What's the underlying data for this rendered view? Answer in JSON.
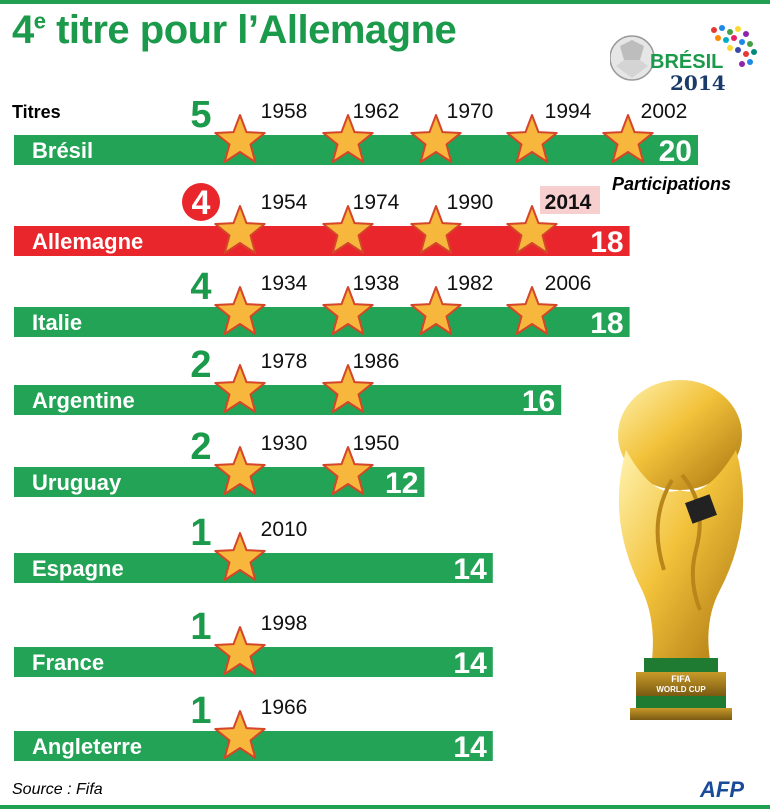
{
  "title": "4e titre pour l’Allemagne",
  "title_parts": {
    "number": "4",
    "sup": "e",
    "rest": " titre pour l’Allemagne"
  },
  "logo": {
    "line1": "BRÉSIL",
    "line2": "2014"
  },
  "titres_label": "Titres",
  "participations_label": "Participations",
  "source": "Source : Fifa",
  "credit": "AFP",
  "colors": {
    "green": "#22a355",
    "red": "#e8262b",
    "title_green": "#1a9a4a",
    "star": "#f6b73c",
    "star_stroke": "#d4452a",
    "highlight": "#f7cfcf"
  },
  "chart_data": {
    "type": "bar",
    "categories": [
      "Brésil",
      "Allemagne",
      "Italie",
      "Argentine",
      "Uruguay",
      "Espagne",
      "France",
      "Angleterre"
    ],
    "series": [
      {
        "name": "Titres",
        "values": [
          5,
          4,
          4,
          2,
          2,
          1,
          1,
          1
        ]
      },
      {
        "name": "Participations",
        "values": [
          20,
          18,
          18,
          16,
          12,
          14,
          14,
          14
        ]
      }
    ],
    "title_years": [
      [
        "1958",
        "1962",
        "1970",
        "1994",
        "2002"
      ],
      [
        "1954",
        "1974",
        "1990",
        "2014"
      ],
      [
        "1934",
        "1938",
        "1982",
        "2006"
      ],
      [
        "1978",
        "1986"
      ],
      [
        "1930",
        "1950"
      ],
      [
        "2010"
      ],
      [
        "1998"
      ],
      [
        "1966"
      ]
    ],
    "highlight_category": "Allemagne",
    "highlight_year": "2014"
  }
}
